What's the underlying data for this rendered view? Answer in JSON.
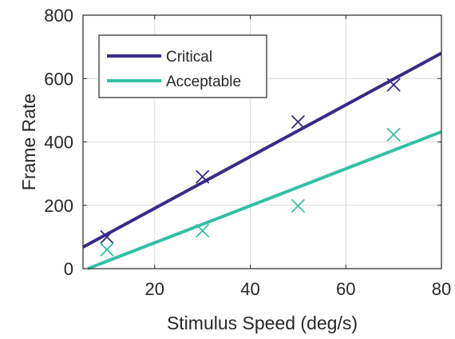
{
  "chart_data": {
    "type": "scatter",
    "title": "",
    "xlabel": "Stimulus Speed (deg/s)",
    "ylabel": "Frame Rate",
    "xlim": [
      5,
      80
    ],
    "ylim": [
      0,
      800
    ],
    "xticks": [
      20,
      40,
      60,
      80
    ],
    "yticks": [
      0,
      200,
      400,
      600,
      800
    ],
    "xtick_labels": [
      "20",
      "40",
      "60",
      "80"
    ],
    "ytick_labels": [
      "0",
      "200",
      "400",
      "600",
      "800"
    ],
    "grid": true,
    "legend_position": "top-left",
    "series": [
      {
        "name": "Critical",
        "color": "#372b8a",
        "marker": "x",
        "points": [
          {
            "x": 10,
            "y": 100
          },
          {
            "x": 30,
            "y": 290
          },
          {
            "x": 50,
            "y": 463
          },
          {
            "x": 70,
            "y": 580
          }
        ],
        "fit_line": [
          {
            "x": 5,
            "y": 68
          },
          {
            "x": 80,
            "y": 680
          }
        ]
      },
      {
        "name": "Acceptable",
        "color": "#33c0a3",
        "marker": "x",
        "points": [
          {
            "x": 10,
            "y": 60
          },
          {
            "x": 30,
            "y": 120
          },
          {
            "x": 50,
            "y": 198
          },
          {
            "x": 70,
            "y": 423
          }
        ],
        "fit_line": [
          {
            "x": 6,
            "y": 0
          },
          {
            "x": 80,
            "y": 432
          }
        ]
      }
    ]
  }
}
